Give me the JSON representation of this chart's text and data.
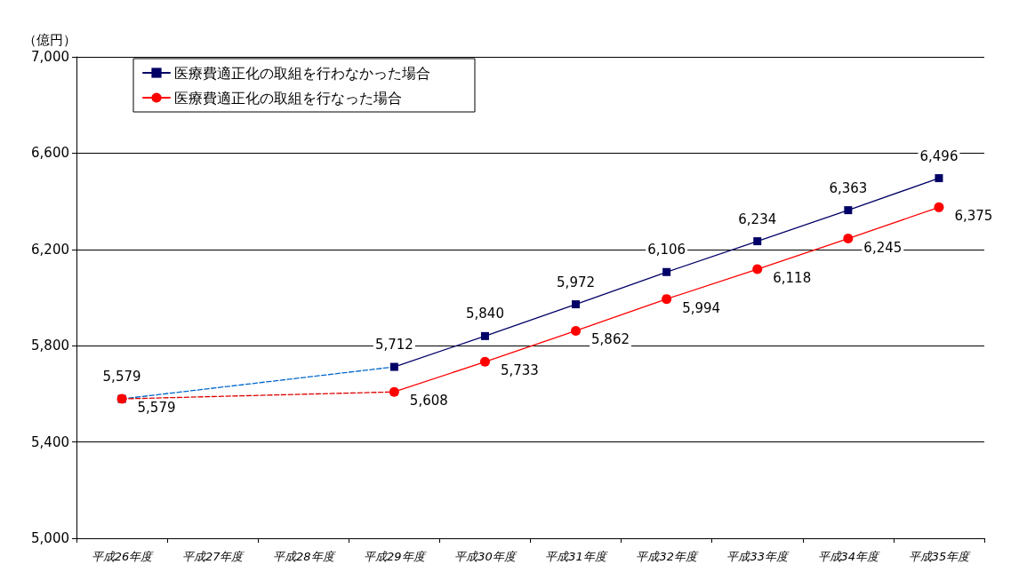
{
  "chart_data": {
    "type": "line",
    "ylabel": "（億円）",
    "categories": [
      "平成26年度",
      "平成27年度",
      "平成28年度",
      "平成29年度",
      "平成30年度",
      "平成31年度",
      "平成32年度",
      "平成33年度",
      "平成34年度",
      "平成35年度"
    ],
    "series": [
      {
        "name": "医療費適正化の取組を行わなかった場合",
        "color": "#000066",
        "marker": "square",
        "values": [
          5579,
          null,
          null,
          5712,
          5840,
          5972,
          6106,
          6234,
          6363,
          6496
        ],
        "value_labels": [
          "5,579",
          null,
          null,
          "5,712",
          "5,840",
          "5,972",
          "6,106",
          "6,234",
          "6,363",
          "6,496"
        ]
      },
      {
        "name": "医療費適正化の取組を行なった場合",
        "color": "#ff0000",
        "marker": "circle",
        "values": [
          5579,
          null,
          null,
          5608,
          5733,
          5862,
          5994,
          6118,
          6245,
          6375
        ],
        "value_labels": [
          "5,579",
          null,
          null,
          "5,608",
          "5,733",
          "5,862",
          "5,994",
          "6,118",
          "6,245",
          "6,375"
        ]
      },
      {
        "color": "#0066cc",
        "marker": "none",
        "line_style": "dashed",
        "x": [
          "平成26年度",
          "平成29年度"
        ],
        "values": [
          5579,
          5712
        ]
      },
      {
        "color": "#e00000",
        "marker": "none",
        "line_style": "dashed",
        "x": [
          "平成26年度",
          "平成29年度"
        ],
        "values": [
          5579,
          5608
        ]
      }
    ],
    "ylim": [
      5000,
      7000
    ],
    "yticks": [
      {
        "value": 5000,
        "label": "5,000"
      },
      {
        "value": 5400,
        "label": "5,400"
      },
      {
        "value": 5800,
        "label": "5,800"
      },
      {
        "value": 6200,
        "label": "6,200"
      },
      {
        "value": 6600,
        "label": "6,600"
      },
      {
        "value": 7000,
        "label": "7,000"
      }
    ],
    "grid": "y",
    "legend": "top left"
  }
}
